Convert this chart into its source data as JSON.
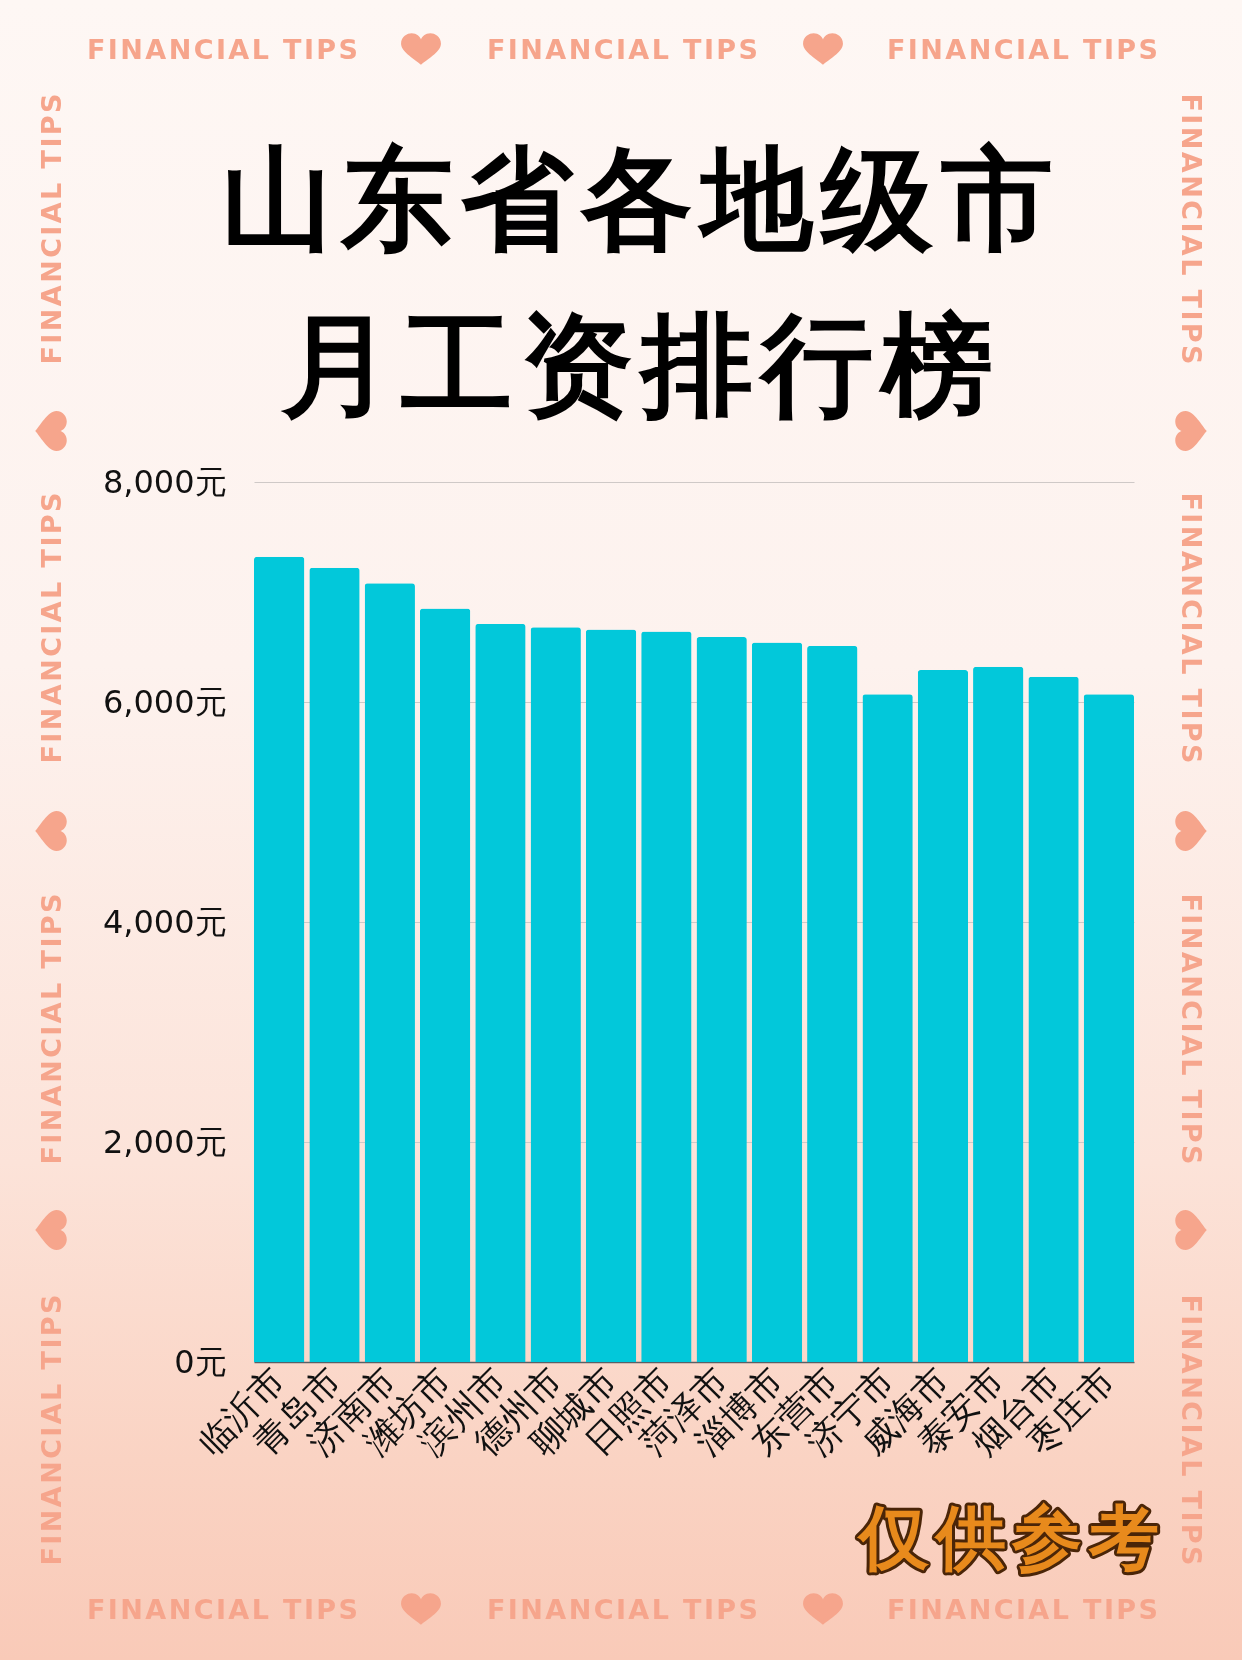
{
  "chart_data": {
    "type": "bar",
    "title": "山东省各地级市月工资排行榜",
    "categories": [
      "临沂市",
      "青岛市",
      "济南市",
      "潍坊市",
      "滨州市",
      "德州市",
      "聊城市",
      "日照市",
      "菏泽市",
      "淄博市",
      "东营市",
      "济宁市",
      "威海市",
      "泰安市",
      "烟台市",
      "枣庄市"
    ],
    "values": [
      7320,
      7220,
      7080,
      6850,
      6710,
      6680,
      6660,
      6640,
      6590,
      6540,
      6510,
      6070,
      6290,
      6320,
      6230,
      6070
    ],
    "color": "#02c8da",
    "ylim": [
      0,
      8000
    ],
    "yticks": [
      {
        "value": 0,
        "label": "0元"
      },
      {
        "value": 2000,
        "label": "2,000元"
      },
      {
        "value": 4000,
        "label": "4,000元"
      },
      {
        "value": 6000,
        "label": "6,000元"
      },
      {
        "value": 8000,
        "label": "8,000元"
      }
    ],
    "grid": "y",
    "annotations": [
      "FINANCIAL TIPS",
      "仅供参考"
    ]
  }
}
